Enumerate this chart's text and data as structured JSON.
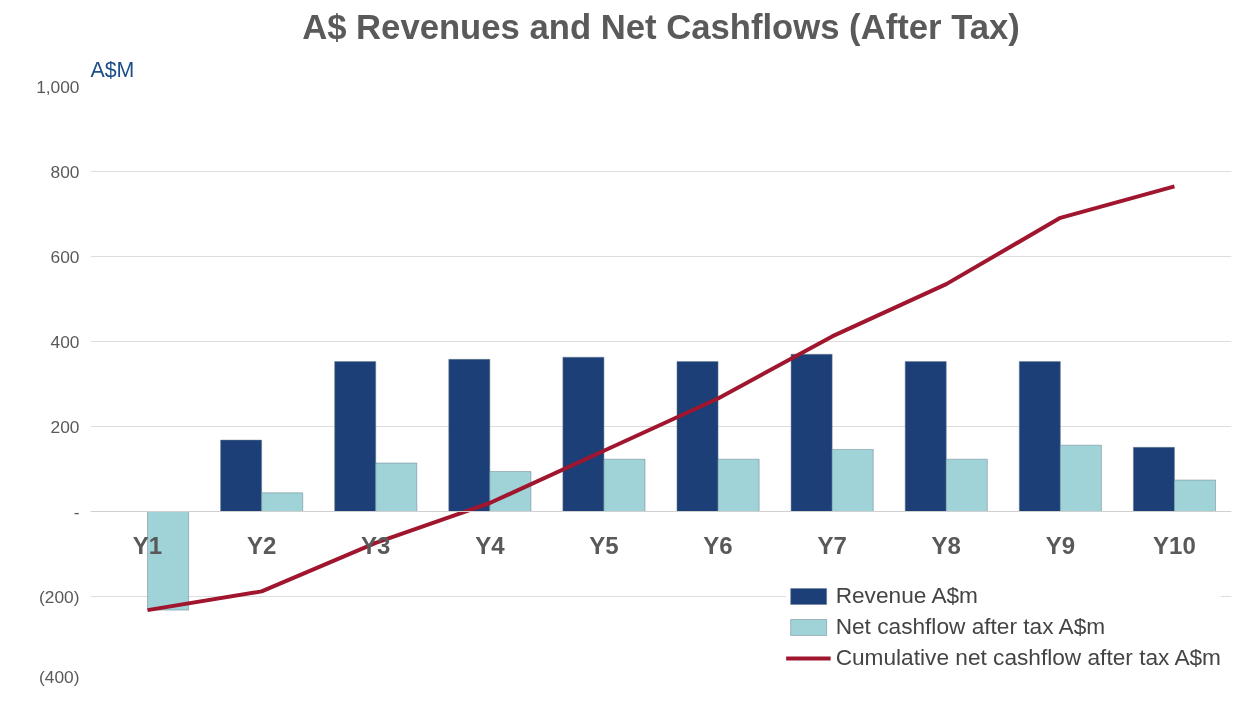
{
  "chart_data": {
    "type": "bar",
    "title": "A$ Revenues and Net Cashflows (After Tax)",
    "ylabel": "A$M",
    "categories": [
      "Y1",
      "Y2",
      "Y3",
      "Y4",
      "Y5",
      "Y6",
      "Y7",
      "Y8",
      "Y9",
      "Y10"
    ],
    "series": [
      {
        "name": "Revenue A$m",
        "color": "#1c3f78",
        "values": [
          null,
          168,
          353,
          358,
          363,
          353,
          370,
          353,
          353,
          151
        ]
      },
      {
        "name": "Net cashflow after tax A$m",
        "color": "#9fd3d8",
        "values": [
          -232,
          44,
          114,
          94,
          123,
          123,
          146,
          123,
          156,
          74
        ]
      },
      {
        "name": "Cumulative net cashflow after tax A$m",
        "type": "line",
        "color": "#a0162e",
        "values": [
          -232,
          -188,
          -74,
          20,
          143,
          266,
          412,
          535,
          691,
          765
        ]
      }
    ],
    "ylim": [
      -400,
      1000
    ],
    "yticks": [
      {
        "value": -400,
        "label": "(400)"
      },
      {
        "value": -200,
        "label": "(200)"
      },
      {
        "value": 0,
        "label": "-"
      },
      200,
      400,
      600,
      800,
      {
        "value": 1000,
        "label": "1,000"
      }
    ],
    "grid": "y",
    "legend": "bottom right"
  }
}
